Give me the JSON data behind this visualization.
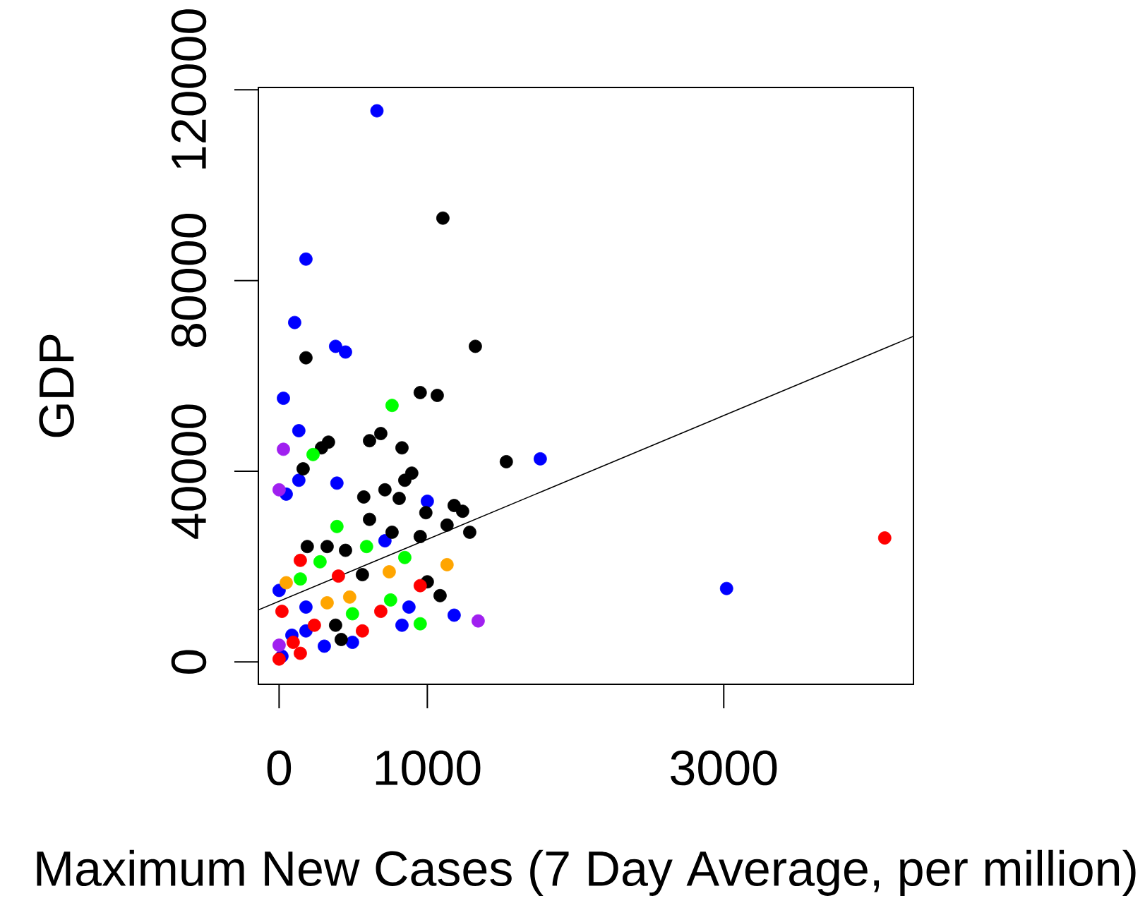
{
  "chart_data": {
    "type": "scatter",
    "xlabel": "Maximum New Cases (7 Day Average, per million)",
    "ylabel": "GDP",
    "marker": "circle",
    "xlim": [
      -140,
      4280
    ],
    "ylim": [
      -4700,
      120500
    ],
    "xticks": [
      0,
      1000,
      3000
    ],
    "yticks": [
      0,
      40000,
      80000,
      120000
    ],
    "series": [
      {
        "color": "#0000ff",
        "x": [
          660,
          181,
          105,
          381,
          448,
          29,
          133,
          390,
          133,
          48,
          1762,
          1000,
          714,
          1181,
          876,
          829,
          19,
          181,
          305,
          495,
          0,
          181,
          86,
          3019
        ],
        "values": [
          115600,
          84500,
          71200,
          66200,
          65000,
          55300,
          48500,
          37500,
          38100,
          35200,
          42600,
          33700,
          25400,
          9800,
          11500,
          7700,
          1200,
          6500,
          3300,
          4100,
          15000,
          11500,
          5600,
          15400
        ]
      },
      {
        "color": "#000000",
        "x": [
          1105,
          1324,
          181,
          952,
          1067,
          1533,
          333,
          286,
          610,
          686,
          829,
          895,
          848,
          162,
          571,
          714,
          810,
          990,
          1181,
          1238,
          1133,
          1286,
          610,
          952,
          762,
          190,
          324,
          448,
          562,
          1000,
          1086,
          381,
          419
        ],
        "values": [
          93100,
          66200,
          63800,
          56500,
          55900,
          42000,
          46100,
          44900,
          46400,
          47900,
          44900,
          39600,
          38100,
          40500,
          34600,
          36100,
          34300,
          31300,
          32800,
          31600,
          28700,
          27200,
          29900,
          26300,
          27200,
          24200,
          24200,
          23400,
          18300,
          16800,
          13900,
          7700,
          4700
        ]
      },
      {
        "color": "#ff0000",
        "x": [
          4086,
          143,
          400,
          19,
          238,
          686,
          143,
          0,
          562,
          952,
          95
        ],
        "values": [
          26000,
          21300,
          18000,
          10600,
          7700,
          10600,
          1800,
          600,
          6500,
          16000,
          4100
        ]
      },
      {
        "color": "#00ff00",
        "x": [
          762,
          229,
          390,
          590,
          848,
          276,
          143,
          495,
          952,
          752
        ],
        "values": [
          53800,
          43500,
          28400,
          24200,
          21900,
          21000,
          17400,
          10100,
          8000,
          13000
        ]
      },
      {
        "color": "#ffa500",
        "x": [
          1133,
          743,
          48,
          476,
          324
        ],
        "values": [
          20400,
          18900,
          16600,
          13600,
          12400
        ]
      },
      {
        "color": "#a020f0",
        "x": [
          29,
          0,
          1343,
          0
        ],
        "values": [
          44600,
          36100,
          8600,
          3500
        ]
      },
      {
        "type": "line",
        "marker": "none",
        "color": "#000000",
        "x": [
          -140,
          4280
        ],
        "values": [
          10900,
          68300
        ]
      }
    ]
  }
}
